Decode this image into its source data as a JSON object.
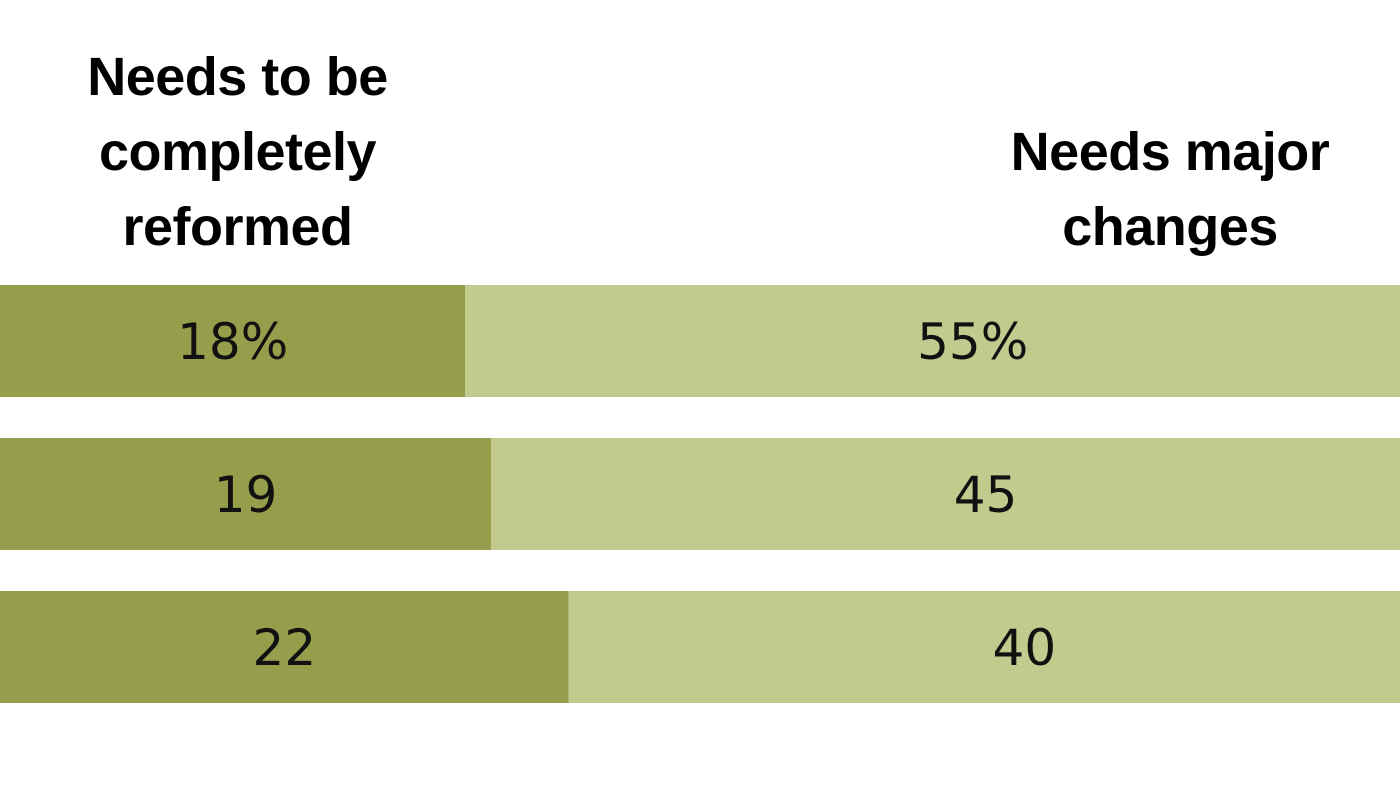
{
  "chart_data": {
    "type": "bar",
    "stacked": true,
    "orientation": "horizontal",
    "series": [
      {
        "name": "Needs to be\ncompletely\nreformed",
        "values": [
          18,
          19,
          22
        ],
        "labels": [
          "18%",
          "19",
          "22"
        ],
        "color": "#969e4b"
      },
      {
        "name": "Needs major\nchanges",
        "values": [
          55,
          45,
          40
        ],
        "labels": [
          "55%",
          "45",
          "40"
        ],
        "color": "#c2cb8d"
      }
    ]
  }
}
